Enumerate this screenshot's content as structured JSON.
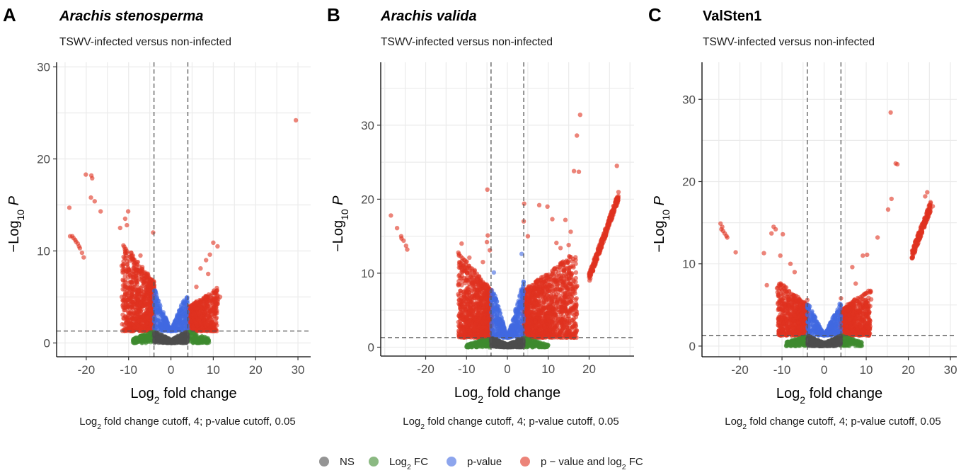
{
  "figure": {
    "legend": {
      "items": [
        {
          "label": "NS",
          "color": "#4d4d4d"
        },
        {
          "label": "Log",
          "sub": "2",
          "tail": " FC",
          "color": "#3d8b2f"
        },
        {
          "label": "p-value",
          "color": "#4169e1"
        },
        {
          "label": "p − value and log",
          "sub": "2",
          "tail": " FC",
          "color": "#e0321f"
        }
      ]
    }
  },
  "chart_data": [
    {
      "type": "scatter",
      "letter": "A",
      "title": "Arachis stenosperma",
      "title_italic": true,
      "subtitle": "TSWV-infected versus non-infected",
      "xlabel": {
        "main": "Log",
        "sub": "2",
        "tail": " fold change"
      },
      "ylabel": {
        "pre": "−Log",
        "sub": "10",
        "post": " P"
      },
      "caption": {
        "a": "Log",
        "sub": "2",
        "b": " fold change cutoff, 4; p-value cutoff, 0.05"
      },
      "xlim": [
        -27,
        33
      ],
      "ylim": [
        -1.5,
        30.5
      ],
      "xticks": [
        -20,
        -10,
        0,
        10,
        20,
        30
      ],
      "yticks": [
        0,
        10,
        20,
        30
      ],
      "xtick_labels": [
        "-20",
        "-10",
        "0",
        "10",
        "20",
        "30"
      ],
      "ytick_labels": [
        "0",
        "10",
        "20",
        "30"
      ],
      "fc_cutoff": 4,
      "p_cutoff_neglog10": 1.3,
      "points": [
        [
          29.5,
          24.2
        ],
        [
          -24.0,
          14.7
        ],
        [
          -20.1,
          18.3
        ],
        [
          -18.8,
          18.2
        ],
        [
          -18.6,
          17.9
        ],
        [
          -18.9,
          15.8
        ],
        [
          -18.0,
          15.4
        ],
        [
          -16.6,
          14.3
        ],
        [
          -4.2,
          12.0
        ],
        [
          -23.8,
          11.6
        ],
        [
          -23.3,
          11.6
        ],
        [
          -23.0,
          11.4
        ],
        [
          -22.6,
          11.2
        ],
        [
          -22.4,
          11.0
        ],
        [
          -22.0,
          10.8
        ],
        [
          -21.7,
          10.5
        ],
        [
          -21.5,
          10.3
        ],
        [
          -21.0,
          9.8
        ],
        [
          -20.6,
          9.3
        ],
        [
          -12.0,
          12.5
        ],
        [
          -10.8,
          13.5
        ],
        [
          -10.1,
          14.3
        ],
        [
          -10.4,
          12.8
        ],
        [
          10.0,
          10.9
        ],
        [
          11.0,
          10.5
        ],
        [
          9.2,
          9.6
        ],
        [
          8.3,
          9.0
        ],
        [
          11.6,
          5.0
        ],
        [
          10.7,
          5.6
        ],
        [
          8.8,
          7.5
        ],
        [
          7.0,
          8.1
        ],
        [
          6.0,
          6.1
        ],
        [
          -7.2,
          9.5
        ],
        [
          -8.1,
          8.6
        ],
        [
          -6.2,
          7.3
        ]
      ],
      "density": [
        {
          "category": "p_value_and_log2fc",
          "side": "left",
          "x_range": [
            -11.5,
            -4.0
          ],
          "y_max_at_edge": 11.0,
          "count": 900
        },
        {
          "category": "p_value_and_log2fc",
          "side": "right",
          "x_range": [
            4.0,
            11.0
          ],
          "y_max_at_edge": 6.0,
          "count": 700
        },
        {
          "category": "p_value",
          "x_range": [
            -4.0,
            4.0
          ],
          "y_range": [
            1.3,
            6.0
          ],
          "count": 400
        },
        {
          "category": "log2fc",
          "x_range": [
            -9.0,
            9.0
          ],
          "y_range": [
            0,
            1.3
          ],
          "count": 250
        },
        {
          "category": "ns",
          "x_range": [
            -4.0,
            4.0
          ],
          "y_range": [
            0,
            1.3
          ],
          "count": 400
        }
      ]
    },
    {
      "type": "scatter",
      "letter": "B",
      "title": "Arachis valida",
      "title_italic": true,
      "subtitle": "TSWV-infected versus non-infected",
      "xlabel": {
        "main": "Log",
        "sub": "2",
        "tail": " fold change"
      },
      "ylabel": {
        "pre": "−Log",
        "sub": "10",
        "post": " P"
      },
      "caption": {
        "a": "Log",
        "sub": "2",
        "b": " fold change cutoff, 4; p-value cutoff, 0.05"
      },
      "xlim": [
        -31,
        31
      ],
      "ylim": [
        -1.2,
        38.5
      ],
      "xticks": [
        -20,
        -10,
        0,
        10,
        20
      ],
      "yticks": [
        0,
        10,
        20,
        30
      ],
      "xtick_labels": [
        "-20",
        "-10",
        "0",
        "10",
        "20"
      ],
      "ytick_labels": [
        "0",
        "10",
        "20",
        "30"
      ],
      "fc_cutoff": 4,
      "p_cutoff_neglog10": 1.3,
      "points": [
        [
          17.8,
          31.4
        ],
        [
          17.0,
          28.6
        ],
        [
          17.5,
          23.7
        ],
        [
          26.8,
          24.5
        ],
        [
          -4.9,
          21.3
        ],
        [
          -28.5,
          17.8
        ],
        [
          -27.0,
          16.1
        ],
        [
          -26.0,
          15.0
        ],
        [
          -25.4,
          14.4
        ],
        [
          -24.8,
          13.7
        ],
        [
          -25.9,
          14.7
        ],
        [
          -24.5,
          13.2
        ],
        [
          4.1,
          19.4
        ],
        [
          9.8,
          19.0
        ],
        [
          7.8,
          19.2
        ],
        [
          14.2,
          17.2
        ],
        [
          4.0,
          17.0
        ],
        [
          5.0,
          15.0
        ],
        [
          -4.8,
          15.1
        ],
        [
          -5.0,
          14.2
        ],
        [
          -4.3,
          13.1
        ],
        [
          -11.2,
          14.0
        ],
        [
          -9.3,
          12.1
        ],
        [
          -8.0,
          10.4
        ],
        [
          -10.7,
          11.0
        ],
        [
          13.0,
          13.4
        ],
        [
          15.0,
          13.8
        ],
        [
          15.5,
          15.6
        ],
        [
          11.0,
          17.3
        ],
        [
          16.3,
          23.8
        ],
        [
          -6.0,
          11.5
        ],
        [
          12.0,
          14.1
        ],
        [
          3.5,
          12.6
        ],
        [
          -3.3,
          10.1
        ]
      ],
      "streak": {
        "x_range": [
          20.0,
          27.2
        ],
        "y_range": [
          9.4,
          20.4
        ],
        "count": 300
      },
      "density": [
        {
          "category": "p_value_and_log2fc",
          "side": "left",
          "x_range": [
            -12.0,
            -4.0
          ],
          "y_max_at_edge": 13.0,
          "count": 1100
        },
        {
          "category": "p_value_and_log2fc",
          "side": "right",
          "x_range": [
            4.0,
            17.0
          ],
          "y_max_at_edge": 13.0,
          "count": 1400
        },
        {
          "category": "p_value",
          "x_range": [
            -4.0,
            4.0
          ],
          "y_range": [
            1.3,
            9.0
          ],
          "count": 500
        },
        {
          "category": "log2fc",
          "x_range": [
            -10.0,
            10.0
          ],
          "y_range": [
            0,
            1.3
          ],
          "count": 300
        },
        {
          "category": "ns",
          "x_range": [
            -4.0,
            4.0
          ],
          "y_range": [
            0,
            1.3
          ],
          "count": 450
        }
      ]
    },
    {
      "type": "scatter",
      "letter": "C",
      "title": "ValSten1",
      "title_italic": false,
      "subtitle": "TSWV-infected versus non-infected",
      "xlabel": {
        "main": "Log",
        "sub": "2",
        "tail": " fold change"
      },
      "ylabel": {
        "pre": "−Log",
        "sub": "10",
        "post": " P"
      },
      "caption": {
        "a": "Log",
        "sub": "2",
        "b": " fold change cutoff, 4; p-value cutoff, 0.05"
      },
      "xlim": [
        -29,
        31.5
      ],
      "ylim": [
        -1.3,
        34.5
      ],
      "xticks": [
        -20,
        -10,
        0,
        10,
        20,
        30
      ],
      "yticks": [
        0,
        10,
        20,
        30
      ],
      "xtick_labels": [
        "-20",
        "-10",
        "0",
        "10",
        "20",
        "30"
      ],
      "ytick_labels": [
        "0",
        "10",
        "20",
        "30"
      ],
      "fc_cutoff": 4,
      "p_cutoff_neglog10": 1.3,
      "points": [
        [
          15.8,
          28.4
        ],
        [
          17.0,
          22.2
        ],
        [
          17.4,
          22.1
        ],
        [
          16.0,
          17.9
        ],
        [
          15.2,
          16.6
        ],
        [
          -24.6,
          14.9
        ],
        [
          -24.2,
          14.5
        ],
        [
          -24.0,
          14.0
        ],
        [
          -23.6,
          13.7
        ],
        [
          -23.2,
          13.4
        ],
        [
          -23.0,
          13.2
        ],
        [
          -24.4,
          14.2
        ],
        [
          -21.0,
          11.4
        ],
        [
          -12.0,
          14.5
        ],
        [
          -11.5,
          14.2
        ],
        [
          -12.5,
          13.7
        ],
        [
          -9.8,
          13.6
        ],
        [
          -14.3,
          11.3
        ],
        [
          -13.6,
          7.4
        ],
        [
          -10.4,
          11.0
        ],
        [
          -8.0,
          10.0
        ],
        [
          12.7,
          13.2
        ],
        [
          10.2,
          11.1
        ],
        [
          9.2,
          11.0
        ],
        [
          6.7,
          9.6
        ],
        [
          10.5,
          5.5
        ],
        [
          24.5,
          18.7
        ],
        [
          24.0,
          18.2
        ],
        [
          25.8,
          17.0
        ],
        [
          -4.0,
          5.6
        ],
        [
          4.0,
          5.8
        ],
        [
          -7.0,
          9.0
        ],
        [
          7.5,
          7.6
        ]
      ],
      "streak": {
        "x_range": [
          20.8,
          25.3
        ],
        "y_range": [
          11.0,
          17.0
        ],
        "count": 200
      },
      "density": [
        {
          "category": "p_value_and_log2fc",
          "side": "left",
          "x_range": [
            -11.0,
            -4.0
          ],
          "y_max_at_edge": 8.0,
          "count": 800
        },
        {
          "category": "p_value_and_log2fc",
          "side": "right",
          "x_range": [
            4.0,
            11.0
          ],
          "y_max_at_edge": 7.0,
          "count": 800
        },
        {
          "category": "p_value",
          "x_range": [
            -4.0,
            4.0
          ],
          "y_range": [
            1.3,
            5.5
          ],
          "count": 350
        },
        {
          "category": "log2fc",
          "x_range": [
            -9.0,
            9.0
          ],
          "y_range": [
            0,
            1.3
          ],
          "count": 250
        },
        {
          "category": "ns",
          "x_range": [
            -4.0,
            4.0
          ],
          "y_range": [
            0,
            1.3
          ],
          "count": 400
        }
      ]
    }
  ]
}
